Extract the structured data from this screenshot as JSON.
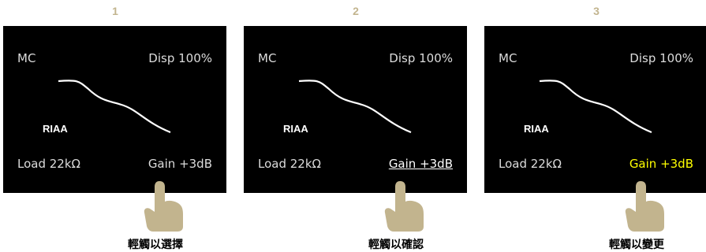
{
  "accent_color": "#c2b48e",
  "panels": [
    {
      "step": "1",
      "mode": "MC",
      "display": "Disp 100%",
      "filter": "RIAA",
      "load": "Load 22kΩ",
      "gain": "Gain +3dB",
      "caption": "輕觸以選擇",
      "gain_state": "normal"
    },
    {
      "step": "2",
      "mode": "MC",
      "display": "Disp 100%",
      "filter": "RIAA",
      "load": "Load 22kΩ",
      "gain": "Gain +3dB",
      "caption": "輕觸以確認",
      "gain_state": "underlined"
    },
    {
      "step": "3",
      "mode": "MC",
      "display": "Disp 100%",
      "filter": "RIAA",
      "load": "Load 22kΩ",
      "gain": "Gain +3dB",
      "caption": "輕觸以變更",
      "gain_state": "yellow"
    }
  ],
  "icons": {
    "hand": "tap-hand-icon",
    "curve": "riaa-curve-icon"
  }
}
